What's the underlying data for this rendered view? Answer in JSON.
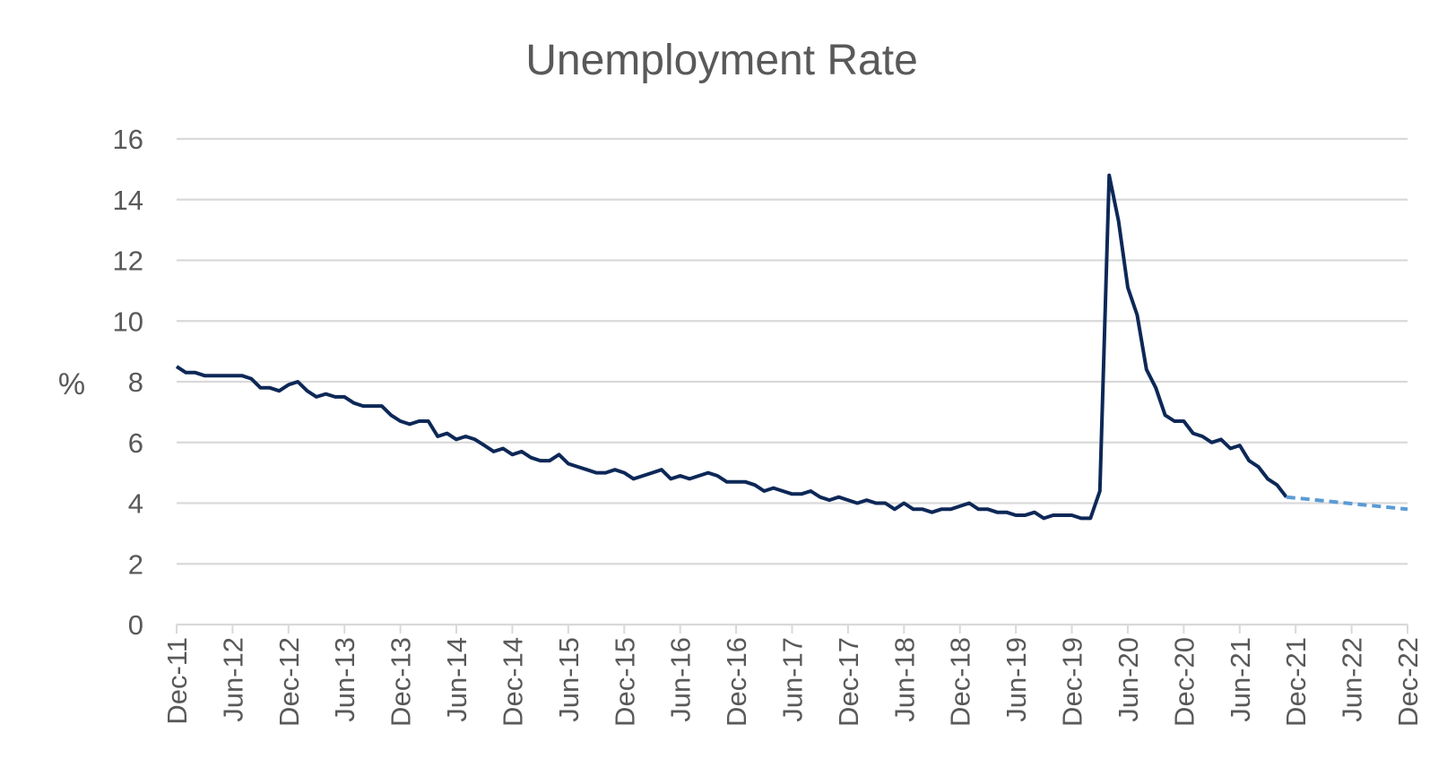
{
  "chart_data": {
    "type": "line",
    "title": "Unemployment Rate",
    "xlabel": "",
    "ylabel": "%",
    "ylim": [
      0,
      16
    ],
    "yticks": [
      "0",
      "2",
      "4",
      "6",
      "8",
      "10",
      "12",
      "14",
      "16"
    ],
    "xticks": [
      "Dec-11",
      "Jun-12",
      "Dec-12",
      "Jun-13",
      "Dec-13",
      "Jun-14",
      "Dec-14",
      "Jun-15",
      "Dec-15",
      "Jun-16",
      "Dec-16",
      "Jun-17",
      "Dec-17",
      "Jun-18",
      "Dec-18",
      "Jun-19",
      "Dec-19",
      "Jun-20",
      "Dec-20",
      "Jun-21",
      "Dec-21",
      "Jun-22",
      "Dec-22"
    ],
    "x_start": "2011-12",
    "x_end": "2022-12",
    "grid": true,
    "colors": {
      "actual": "#0d2857",
      "forecast": "#5b9bd5",
      "grid": "#d9d9d9",
      "text": "#595959"
    },
    "series": [
      {
        "style": "solid",
        "start": "2011-12",
        "values": [
          8.5,
          8.3,
          8.3,
          8.2,
          8.2,
          8.2,
          8.2,
          8.2,
          8.1,
          7.8,
          7.8,
          7.7,
          7.9,
          8.0,
          7.7,
          7.5,
          7.6,
          7.5,
          7.5,
          7.3,
          7.2,
          7.2,
          7.2,
          6.9,
          6.7,
          6.6,
          6.7,
          6.7,
          6.2,
          6.3,
          6.1,
          6.2,
          6.1,
          5.9,
          5.7,
          5.8,
          5.6,
          5.7,
          5.5,
          5.4,
          5.4,
          5.6,
          5.3,
          5.2,
          5.1,
          5.0,
          5.0,
          5.1,
          5.0,
          4.8,
          4.9,
          5.0,
          5.1,
          4.8,
          4.9,
          4.8,
          4.9,
          5.0,
          4.9,
          4.7,
          4.7,
          4.7,
          4.6,
          4.4,
          4.5,
          4.4,
          4.3,
          4.3,
          4.4,
          4.2,
          4.1,
          4.2,
          4.1,
          4.0,
          4.1,
          4.0,
          4.0,
          3.8,
          4.0,
          3.8,
          3.8,
          3.7,
          3.8,
          3.8,
          3.9,
          4.0,
          3.8,
          3.8,
          3.7,
          3.7,
          3.6,
          3.6,
          3.7,
          3.5,
          3.6,
          3.6,
          3.6,
          3.5,
          3.5,
          4.4,
          14.8,
          13.3,
          11.1,
          10.2,
          8.4,
          7.8,
          6.9,
          6.7,
          6.7,
          6.3,
          6.2,
          6.0,
          6.1,
          5.8,
          5.9,
          5.4,
          5.2,
          4.8,
          4.6,
          4.2
        ]
      },
      {
        "style": "dashed",
        "start": "2021-11",
        "end": "2022-12",
        "values": [
          4.2,
          3.8
        ]
      }
    ]
  }
}
